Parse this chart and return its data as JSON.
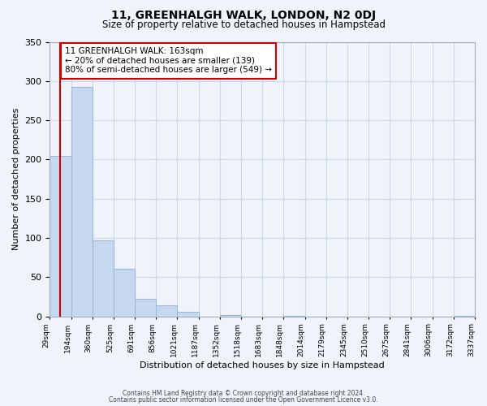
{
  "title": "11, GREENHALGH WALK, LONDON, N2 0DJ",
  "subtitle": "Size of property relative to detached houses in Hampstead",
  "xlabel": "Distribution of detached houses by size in Hampstead",
  "ylabel": "Number of detached properties",
  "bar_color": "#c5d8f0",
  "bar_edge_color": "#a0b8d8",
  "bin_labels": [
    "29sqm",
    "194sqm",
    "360sqm",
    "525sqm",
    "691sqm",
    "856sqm",
    "1021sqm",
    "1187sqm",
    "1352sqm",
    "1518sqm",
    "1683sqm",
    "1848sqm",
    "2014sqm",
    "2179sqm",
    "2345sqm",
    "2510sqm",
    "2675sqm",
    "2841sqm",
    "3006sqm",
    "3172sqm",
    "3337sqm"
  ],
  "bar_heights": [
    205,
    293,
    97,
    61,
    22,
    14,
    6,
    0,
    2,
    0,
    0,
    1,
    0,
    0,
    0,
    0,
    0,
    0,
    0,
    1
  ],
  "annotation_text": "11 GREENHALGH WALK: 163sqm\n← 20% of detached houses are smaller (139)\n80% of semi-detached houses are larger (549) →",
  "annotation_box_color": "#ffffff",
  "annotation_box_edge": "#cc0000",
  "ylim": [
    0,
    350
  ],
  "yticks": [
    0,
    50,
    100,
    150,
    200,
    250,
    300,
    350
  ],
  "grid_color": "#c8d8e8",
  "background_color": "#f0f4fa",
  "red_line_x": 0.5,
  "footer_line1": "Contains HM Land Registry data © Crown copyright and database right 2024.",
  "footer_line2": "Contains public sector information licensed under the Open Government Licence v3.0."
}
